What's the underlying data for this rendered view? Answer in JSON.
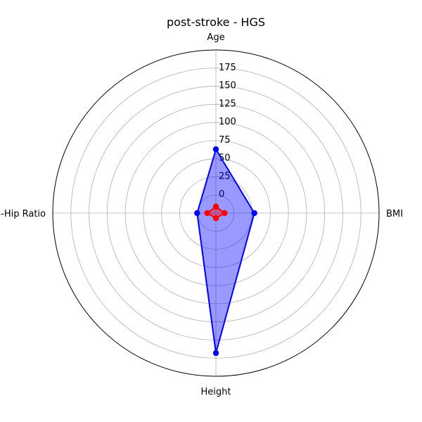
{
  "chart_data": {
    "type": "radar",
    "title": "post-stroke - HGS",
    "axes": [
      "Age",
      "BMI",
      "Height",
      "Waist-to-Hip Ratio"
    ],
    "radial_ticks": [
      0,
      25,
      50,
      75,
      100,
      125,
      150,
      175
    ],
    "radial_range": [
      -25,
      200
    ],
    "grid": true,
    "series": [
      {
        "color": "#0000ff",
        "fill_color": "#0000ff",
        "fill_opacity": 0.4,
        "values": [
          63,
          28,
          168,
          0.9
        ]
      },
      {
        "color": "#ff0000",
        "fill_color": "#ff0000",
        "fill_opacity": 0.4,
        "values": [
          -16,
          -13,
          -18,
          -13
        ]
      }
    ]
  }
}
